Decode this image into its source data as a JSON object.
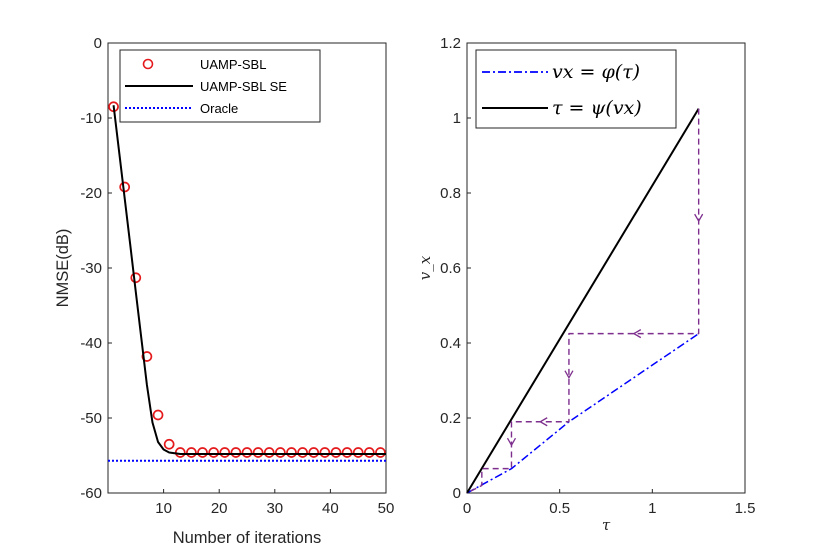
{
  "chart_data": [
    {
      "type": "line",
      "xlabel": "Number of iterations",
      "ylabel": "NMSE(dB)",
      "xlim": [
        0,
        50
      ],
      "ylim": [
        -60,
        0
      ],
      "xticks": [
        10,
        20,
        30,
        40,
        50
      ],
      "yticks": [
        0,
        -10,
        -20,
        -30,
        -40,
        -50,
        -60
      ],
      "legend": "top-left",
      "series": [
        {
          "name": "UAMP-SBL",
          "style": "markers",
          "color": "#e41a1c",
          "x": [
            1,
            3,
            5,
            7,
            9,
            11,
            13,
            15,
            17,
            19,
            21,
            23,
            25,
            27,
            29,
            31,
            33,
            35,
            37,
            39,
            41,
            43,
            45,
            47,
            49
          ],
          "y": [
            -8.5,
            -19.2,
            -31.3,
            -41.8,
            -49.6,
            -53.5,
            -54.6,
            -54.6,
            -54.6,
            -54.6,
            -54.6,
            -54.6,
            -54.6,
            -54.6,
            -54.6,
            -54.6,
            -54.6,
            -54.6,
            -54.6,
            -54.6,
            -54.6,
            -54.6,
            -54.6,
            -54.6,
            -54.6
          ]
        },
        {
          "name": "UAMP-SBL SE",
          "style": "solid",
          "color": "#000000",
          "x": [
            1,
            2,
            3,
            4,
            5,
            6,
            7,
            8,
            9,
            10,
            11,
            12,
            13,
            14,
            15,
            20,
            30,
            40,
            50
          ],
          "y": [
            -8.3,
            -14.5,
            -20.7,
            -26.9,
            -33.2,
            -39.4,
            -45.6,
            -50.6,
            -53.2,
            -54.2,
            -54.6,
            -54.7,
            -54.8,
            -54.8,
            -54.8,
            -54.8,
            -54.8,
            -54.8,
            -54.8
          ]
        },
        {
          "name": "Oracle",
          "style": "dotted",
          "color": "#0000ff",
          "x": [
            0,
            50
          ],
          "y": [
            -55.7,
            -55.7
          ]
        }
      ]
    },
    {
      "type": "line",
      "xlabel": "τ",
      "ylabel": "v_x",
      "xlim": [
        0,
        1.5
      ],
      "ylim": [
        0,
        1.2
      ],
      "xticks": [
        0,
        0.5,
        1,
        1.5
      ],
      "yticks": [
        0,
        0.2,
        0.4,
        0.6,
        0.8,
        1,
        1.2
      ],
      "legend": "top-left",
      "series": [
        {
          "name": "v_x = φ(τ)",
          "legend_text": "vx = φ(τ)",
          "style": "dashdot",
          "color": "#0000ff",
          "x": [
            0,
            0.24,
            0.55,
            1.25
          ],
          "y": [
            0,
            0.065,
            0.19,
            0.425
          ]
        },
        {
          "name": "τ = ψ(v_x)",
          "legend_text": "τ = ψ(vx)",
          "style": "solid",
          "color": "#000000",
          "x": [
            0,
            1.25
          ],
          "y": [
            0,
            1.025
          ]
        },
        {
          "name": "iteration trajectory",
          "style": "dashed",
          "color": "#7e2f8e",
          "x": [
            1.25,
            1.25,
            0.55,
            0.55,
            0.24,
            0.24,
            0.08,
            0.08,
            0
          ],
          "y": [
            1.025,
            0.425,
            0.425,
            0.19,
            0.19,
            0.065,
            0.065,
            0.02,
            0
          ]
        }
      ]
    }
  ]
}
